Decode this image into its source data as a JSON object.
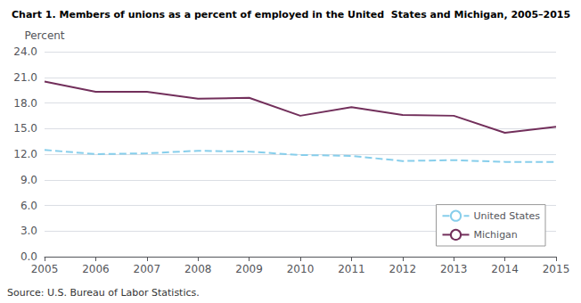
{
  "chart_data": {
    "type": "line",
    "title": "Chart 1. Members of unions as a percent of employed in the United  States and Michigan, 2005–2015",
    "ylabel": "Percent",
    "annotations": [
      "Source: U.S. Bureau of Labor Statistics."
    ],
    "x": [
      2005,
      2006,
      2007,
      2008,
      2009,
      2010,
      2011,
      2012,
      2013,
      2014,
      2015
    ],
    "series": [
      {
        "name": "United States",
        "color": "#87CEEB",
        "line_style": "dashed",
        "values": [
          12.5,
          12.0,
          12.1,
          12.4,
          12.3,
          11.9,
          11.8,
          11.2,
          11.3,
          11.1,
          11.1
        ]
      },
      {
        "name": "Michigan",
        "color": "#722F5B",
        "line_style": "solid",
        "values": [
          20.5,
          19.3,
          19.3,
          18.5,
          18.6,
          16.5,
          17.5,
          16.6,
          16.5,
          14.5,
          15.2
        ]
      }
    ],
    "xlim": [
      2005,
      2015
    ],
    "xticks": [
      2005,
      2006,
      2007,
      2008,
      2009,
      2010,
      2011,
      2012,
      2013,
      2014,
      2015
    ],
    "ylim": [
      0,
      24.0
    ],
    "yticks": [
      {
        "value": 0.0,
        "label": "0.0"
      },
      {
        "value": 3.0,
        "label": "3.0"
      },
      {
        "value": 6.0,
        "label": "6.0"
      },
      {
        "value": 9.0,
        "label": "9.0"
      },
      {
        "value": 12.0,
        "label": "12.0"
      },
      {
        "value": 15.0,
        "label": "15.0"
      },
      {
        "value": 18.0,
        "label": "18.0"
      },
      {
        "value": 21.0,
        "label": "21.0"
      },
      {
        "value": 24.0,
        "label": "24.0"
      }
    ],
    "grid": true,
    "legend": "lower right"
  }
}
